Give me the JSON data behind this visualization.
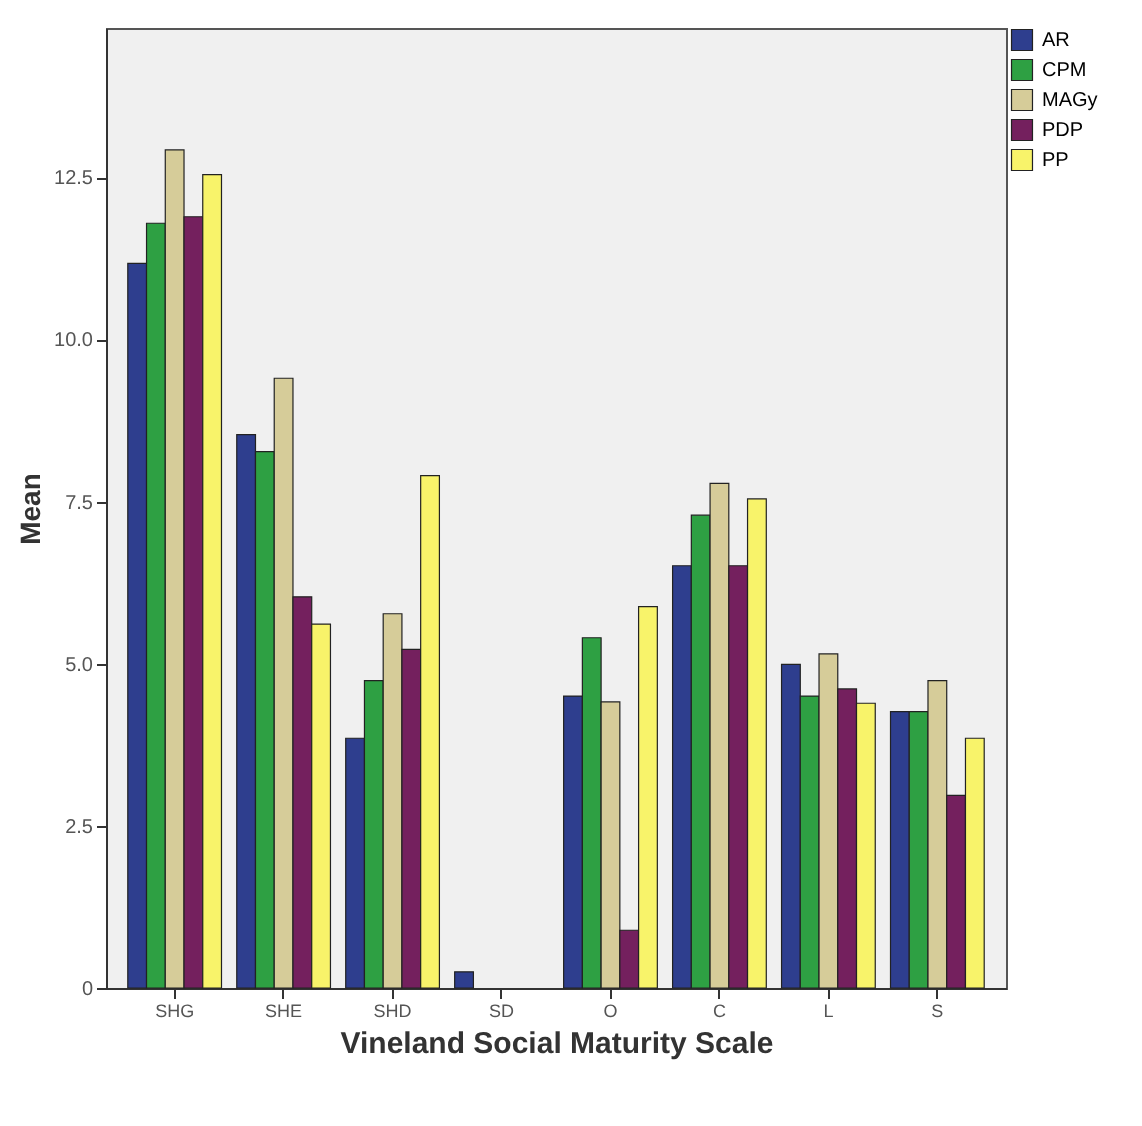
{
  "chart_data": {
    "type": "bar",
    "xlabel": "Vineland Social Maturity Scale",
    "ylabel": "Mean",
    "categories": [
      "SHG",
      "SHE",
      "SHD",
      "SD",
      "O",
      "C",
      "L",
      "S"
    ],
    "series": [
      {
        "name": "AR",
        "color": "#2e3e8e",
        "values": [
          11.17,
          8.53,
          3.85,
          0.25,
          4.5,
          6.51,
          4.99,
          4.26
        ]
      },
      {
        "name": "CPM",
        "color": "#2ea043",
        "values": [
          11.79,
          8.27,
          4.74,
          null,
          5.4,
          7.29,
          4.5,
          4.26
        ]
      },
      {
        "name": "MAGy",
        "color": "#d6cc99",
        "values": [
          12.92,
          9.4,
          5.77,
          null,
          4.41,
          7.78,
          5.15,
          4.74
        ]
      },
      {
        "name": "PDP",
        "color": "#74205e",
        "values": [
          11.89,
          6.03,
          5.22,
          null,
          0.89,
          6.51,
          4.61,
          2.97
        ]
      },
      {
        "name": "PP",
        "color": "#f8f36a",
        "values": [
          12.54,
          5.61,
          7.9,
          null,
          5.88,
          7.54,
          4.39,
          3.85
        ]
      }
    ],
    "ylim": [
      0,
      14.8
    ],
    "yticks": [
      0,
      2.5,
      {
        "value": 5,
        "label": "5.0"
      },
      7.5,
      {
        "value": 10,
        "label": "10.0"
      },
      12.5
    ],
    "grid": false,
    "legend": "top right"
  }
}
